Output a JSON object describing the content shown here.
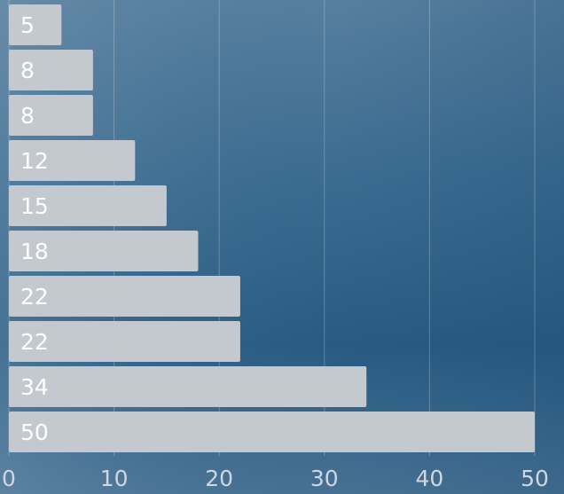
{
  "chart_data": {
    "type": "bar",
    "orientation": "horizontal",
    "values": [
      5,
      8,
      8,
      12,
      15,
      18,
      22,
      22,
      34,
      50
    ],
    "color": "#c4c9d0",
    "xlim": [
      0,
      50
    ],
    "xticks": [
      0,
      10,
      20,
      30,
      40,
      50
    ],
    "grid": true
  }
}
